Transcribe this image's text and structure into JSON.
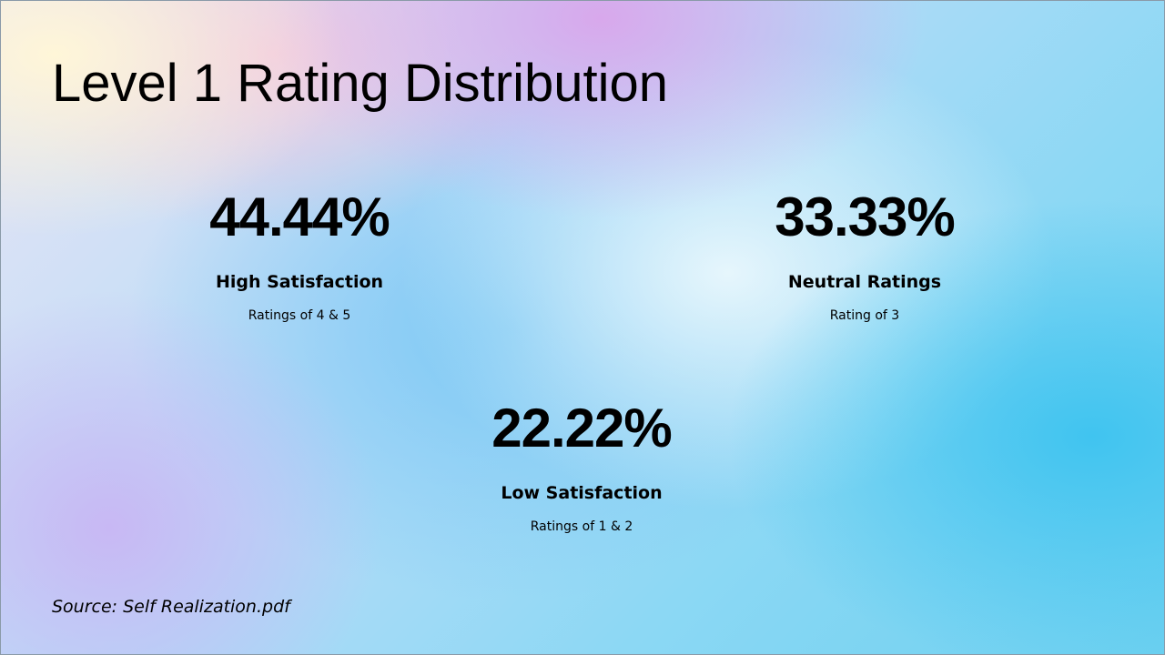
{
  "title": "Level 1 Rating Distribution",
  "stats": [
    {
      "value": "44.44%",
      "label": "High Satisfaction",
      "sub": "Ratings of 4 & 5"
    },
    {
      "value": "33.33%",
      "label": "Neutral Ratings",
      "sub": "Rating of 3"
    },
    {
      "value": "22.22%",
      "label": "Low Satisfaction",
      "sub": "Ratings of 1 & 2"
    }
  ],
  "source": "Source: Self Realization.pdf"
}
